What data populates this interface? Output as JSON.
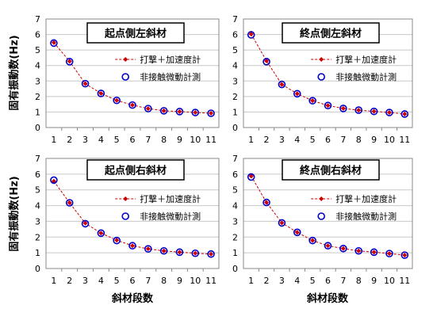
{
  "xlabel": "斜材段数",
  "ylabel": "固有振動数(Hz)",
  "colors": {
    "hammer": "#CC0000",
    "noncontact": "#0000CC",
    "grid": "#c8c8c8"
  },
  "chart_data": [
    {
      "type": "line",
      "title": "起点側左斜材",
      "categories": [
        "1",
        "2",
        "3",
        "4",
        "5",
        "6",
        "7",
        "8",
        "9",
        "10",
        "11"
      ],
      "ylim": [
        0,
        7
      ],
      "yticks": [
        "0",
        "1",
        "2",
        "3",
        "4",
        "5",
        "6",
        "7"
      ],
      "grid": true,
      "legend": "right",
      "series": [
        {
          "name": "打撃＋加速度計",
          "values": [
            5.48,
            4.27,
            2.83,
            2.2,
            1.75,
            1.45,
            1.22,
            1.08,
            1.03,
            0.97,
            0.92
          ]
        },
        {
          "name": "非接触微動計測",
          "values": [
            5.45,
            4.25,
            2.83,
            2.2,
            1.75,
            1.45,
            1.22,
            1.08,
            1.03,
            0.97,
            0.92
          ]
        }
      ]
    },
    {
      "type": "line",
      "title": "終点側左斜材",
      "categories": [
        "1",
        "2",
        "3",
        "4",
        "5",
        "6",
        "7",
        "8",
        "9",
        "10",
        "11"
      ],
      "ylim": [
        0,
        7
      ],
      "yticks": [
        "0",
        "1",
        "2",
        "3",
        "4",
        "5",
        "6",
        "7"
      ],
      "grid": true,
      "legend": "right",
      "series": [
        {
          "name": "打撃＋加速度計",
          "values": [
            6.03,
            4.3,
            2.78,
            2.18,
            1.73,
            1.42,
            1.23,
            1.12,
            1.04,
            0.97,
            0.87
          ]
        },
        {
          "name": "非接触微動計測",
          "values": [
            5.98,
            4.25,
            2.78,
            2.18,
            1.73,
            1.42,
            1.23,
            1.12,
            1.04,
            0.97,
            0.87
          ]
        }
      ]
    },
    {
      "type": "line",
      "title": "起点側右斜材",
      "categories": [
        "1",
        "2",
        "3",
        "4",
        "5",
        "6",
        "7",
        "8",
        "9",
        "10",
        "11"
      ],
      "ylim": [
        0,
        7
      ],
      "yticks": [
        "0",
        "1",
        "2",
        "3",
        "4",
        "5",
        "6",
        "7"
      ],
      "grid": true,
      "legend": "right",
      "series": [
        {
          "name": "打撃＋加速度計",
          "values": [
            5.55,
            4.18,
            2.88,
            2.25,
            1.8,
            1.45,
            1.25,
            1.12,
            1.04,
            0.97,
            0.92
          ]
        },
        {
          "name": "非接触微動計測",
          "values": [
            5.62,
            4.18,
            2.85,
            2.25,
            1.78,
            1.45,
            1.25,
            1.12,
            1.04,
            0.97,
            0.92
          ]
        }
      ]
    },
    {
      "type": "line",
      "title": "終点側右斜材",
      "categories": [
        "1",
        "2",
        "3",
        "4",
        "5",
        "6",
        "7",
        "8",
        "9",
        "10",
        "11"
      ],
      "ylim": [
        0,
        7
      ],
      "yticks": [
        "0",
        "1",
        "2",
        "3",
        "4",
        "5",
        "6",
        "7"
      ],
      "grid": true,
      "legend": "right",
      "series": [
        {
          "name": "打撃＋加速度計",
          "values": [
            5.88,
            4.2,
            2.9,
            2.3,
            1.78,
            1.45,
            1.27,
            1.12,
            1.04,
            0.95,
            0.85
          ]
        },
        {
          "name": "非接触微動計測",
          "values": [
            5.82,
            4.2,
            2.9,
            2.3,
            1.78,
            1.45,
            1.27,
            1.12,
            1.04,
            0.95,
            0.85
          ]
        }
      ]
    }
  ]
}
